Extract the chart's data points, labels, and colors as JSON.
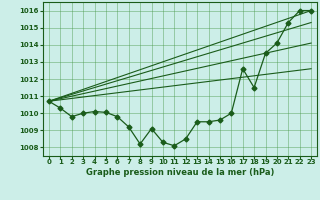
{
  "title": "Graphe pression niveau de la mer (hPa)",
  "background_color": "#cceee8",
  "grid_color": "#4a9a4a",
  "line_color": "#1a5c1a",
  "xlim": [
    -0.5,
    23.5
  ],
  "ylim": [
    1007.5,
    1016.5
  ],
  "yticks": [
    1008,
    1009,
    1010,
    1011,
    1012,
    1013,
    1014,
    1015,
    1016
  ],
  "xticks": [
    0,
    1,
    2,
    3,
    4,
    5,
    6,
    7,
    8,
    9,
    10,
    11,
    12,
    13,
    14,
    15,
    16,
    17,
    18,
    19,
    20,
    21,
    22,
    23
  ],
  "main_x": [
    0,
    1,
    2,
    3,
    4,
    5,
    6,
    7,
    8,
    9,
    10,
    11,
    12,
    13,
    14,
    15,
    16,
    17,
    18,
    19,
    20,
    21,
    22,
    23
  ],
  "main_y": [
    1010.7,
    1010.3,
    1009.8,
    1010.0,
    1010.1,
    1010.05,
    1009.8,
    1009.2,
    1008.2,
    1009.1,
    1008.3,
    1008.1,
    1008.5,
    1009.5,
    1009.5,
    1009.6,
    1010.0,
    1012.6,
    1011.5,
    1013.5,
    1014.1,
    1015.3,
    1016.0,
    1016.0
  ],
  "straight_lines": [
    {
      "x": [
        0,
        23
      ],
      "y": [
        1010.7,
        1016.0
      ]
    },
    {
      "x": [
        0,
        23
      ],
      "y": [
        1010.7,
        1015.3
      ]
    },
    {
      "x": [
        0,
        23
      ],
      "y": [
        1010.7,
        1014.1
      ]
    },
    {
      "x": [
        0,
        23
      ],
      "y": [
        1010.7,
        1012.6
      ]
    }
  ]
}
